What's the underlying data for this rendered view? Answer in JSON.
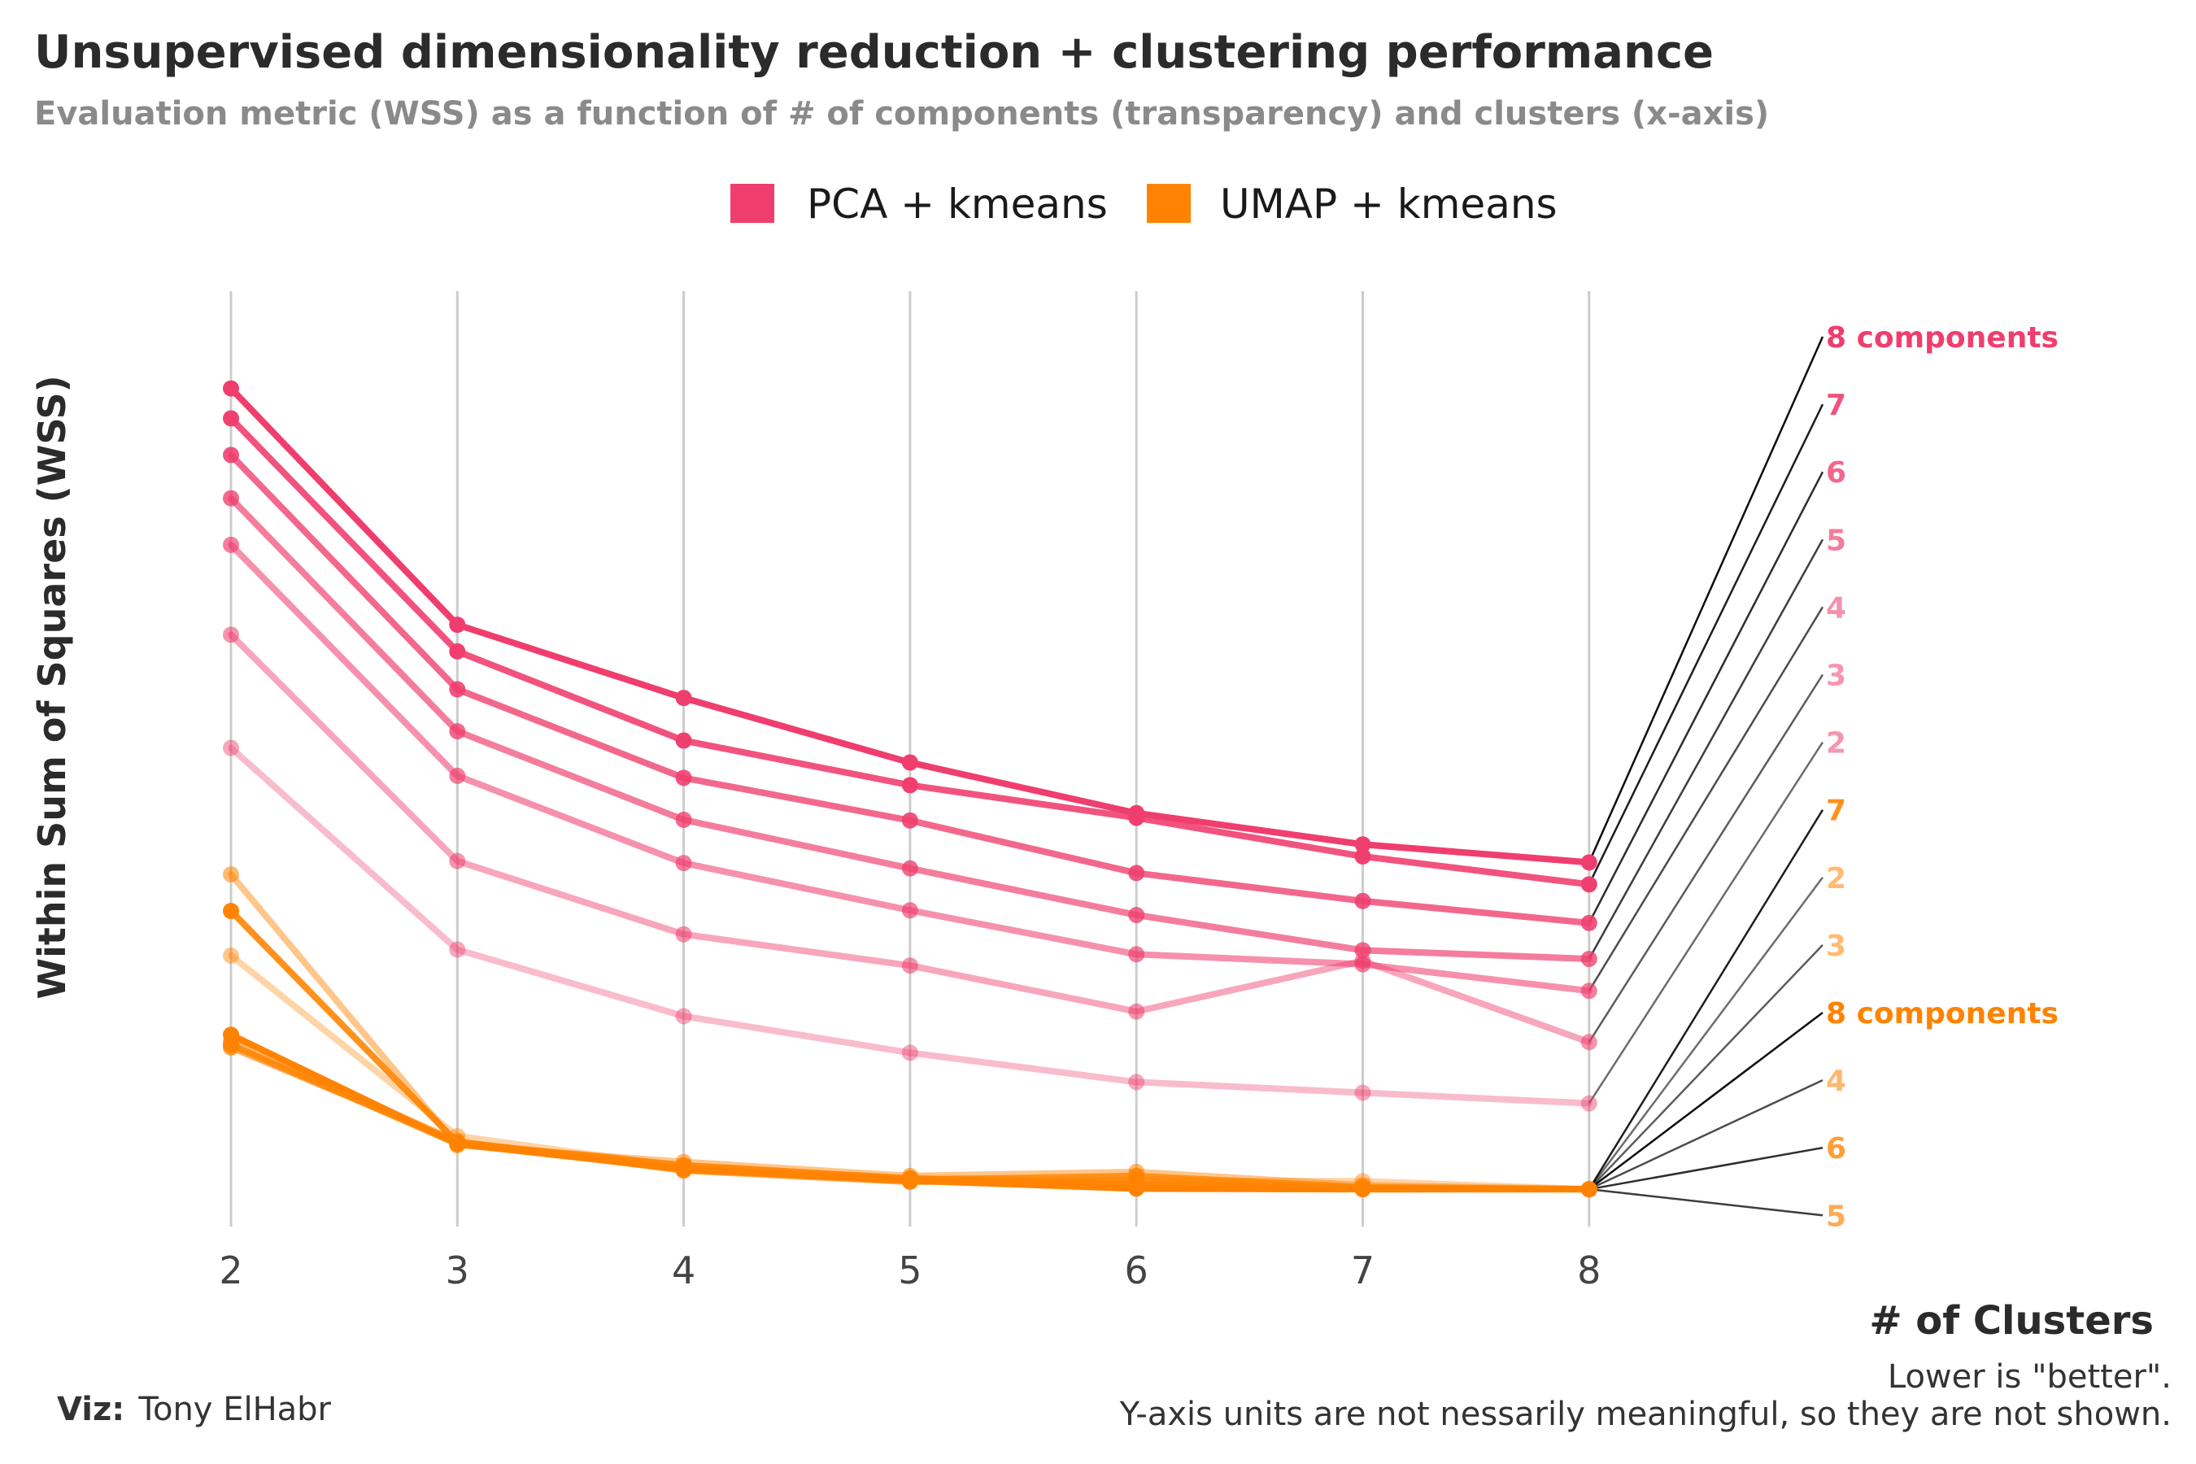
{
  "header": {
    "title": "Unsupervised dimensionality reduction + clustering performance",
    "subtitle": "Evaluation metric (WSS) as a function of # of components (transparency) and clusters (x-axis)"
  },
  "legend": {
    "items": [
      {
        "label": "PCA + kmeans",
        "color": "#ef3e6e"
      },
      {
        "label": "UMAP + kmeans",
        "color": "#ff8300"
      }
    ]
  },
  "colors": {
    "pca": "#ef3e6e",
    "umap": "#ff8300",
    "grid": "#cccccc",
    "connector": "#000000"
  },
  "caption": {
    "viz_label": "Viz:",
    "viz_author": "Tony ElHabr",
    "note_line1": "Lower is \"better\".",
    "note_line2": "Y-axis units are not nessarily meaningful, so they are not shown."
  },
  "chart_data": {
    "type": "line",
    "title": "Unsupervised dimensionality reduction + clustering performance",
    "xlabel": "# of Clusters",
    "ylabel": "Within Sum of Squares (WSS)",
    "x": [
      2,
      3,
      4,
      5,
      6,
      7,
      8
    ],
    "x_tick_labels": [
      "2",
      "3",
      "4",
      "5",
      "6",
      "7",
      "8"
    ],
    "ylim": [
      0,
      130
    ],
    "y_axis_shown": false,
    "grid": "vertical",
    "legend_position": "top",
    "series": [
      {
        "method": "PCA + kmeans",
        "components": 8,
        "end_label": "8 components",
        "values": [
          121.5,
          86.0,
          75.0,
          65.3,
          57.7,
          53.0,
          50.3
        ]
      },
      {
        "method": "PCA + kmeans",
        "components": 7,
        "end_label": "7",
        "values": [
          117.0,
          82.0,
          68.6,
          61.9,
          57.0,
          51.2,
          47.0
        ]
      },
      {
        "method": "PCA + kmeans",
        "components": 6,
        "end_label": "6",
        "values": [
          111.5,
          76.3,
          63.0,
          56.6,
          48.7,
          44.5,
          41.2
        ]
      },
      {
        "method": "PCA + kmeans",
        "components": 5,
        "end_label": "5",
        "values": [
          105.0,
          70.0,
          56.7,
          49.4,
          42.4,
          37.1,
          35.8
        ]
      },
      {
        "method": "PCA + kmeans",
        "components": 4,
        "end_label": "4",
        "values": [
          98.0,
          63.3,
          50.2,
          43.1,
          36.5,
          35.0,
          31.0
        ]
      },
      {
        "method": "PCA + kmeans",
        "components": 3,
        "end_label": "3",
        "values": [
          84.5,
          50.5,
          39.5,
          34.8,
          27.9,
          35.5,
          23.3
        ]
      },
      {
        "method": "PCA + kmeans",
        "components": 2,
        "end_label": "2",
        "values": [
          67.5,
          37.2,
          27.2,
          21.7,
          17.3,
          15.7,
          14.1
        ]
      },
      {
        "method": "UMAP + kmeans",
        "components": 7,
        "end_label": "7",
        "values": [
          43.0,
          8.2,
          4.8,
          2.8,
          1.9,
          1.3,
          1.2
        ]
      },
      {
        "method": "UMAP + kmeans",
        "components": 2,
        "end_label": "2",
        "values": [
          36.3,
          9.2,
          4.5,
          2.9,
          2.5,
          2.4,
          1.2
        ]
      },
      {
        "method": "UMAP + kmeans",
        "components": 3,
        "end_label": "3",
        "values": [
          48.5,
          7.8,
          5.3,
          3.2,
          3.8,
          1.8,
          1.2
        ]
      },
      {
        "method": "UMAP + kmeans",
        "components": 8,
        "end_label": "8 components",
        "values": [
          24.4,
          8.0,
          4.2,
          2.5,
          1.3,
          1.2,
          1.2
        ]
      },
      {
        "method": "UMAP + kmeans",
        "components": 4,
        "end_label": "4",
        "values": [
          23.4,
          8.4,
          4.0,
          2.3,
          2.8,
          1.4,
          1.2
        ]
      },
      {
        "method": "UMAP + kmeans",
        "components": 6,
        "end_label": "6",
        "values": [
          22.9,
          8.0,
          4.3,
          2.6,
          3.2,
          1.5,
          1.2
        ]
      },
      {
        "method": "UMAP + kmeans",
        "components": 5,
        "end_label": "5",
        "values": [
          22.5,
          8.3,
          4.1,
          2.4,
          2.2,
          1.2,
          1.2
        ]
      }
    ]
  }
}
